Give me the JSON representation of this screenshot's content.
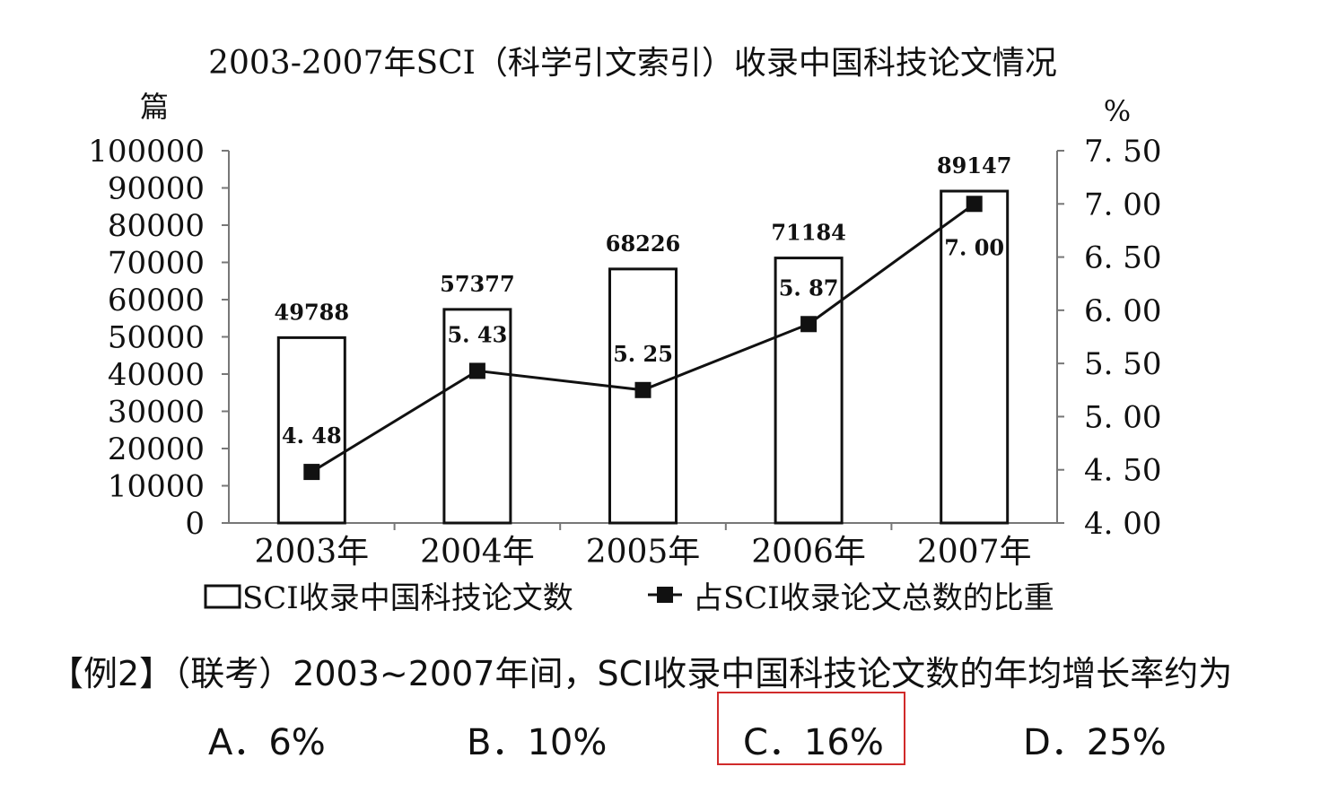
{
  "chart_data": {
    "type": "bar",
    "title": "2003-2007年SCI（科学引文索引）收录中国科技论文情况",
    "left_unit": "篇",
    "right_unit": "%",
    "categories": [
      "2003年",
      "2004年",
      "2005年",
      "2006年",
      "2007年"
    ],
    "series": [
      {
        "name": "SCI收录中国科技论文数",
        "type": "bar",
        "axis": "left",
        "values": [
          49788,
          57377,
          68226,
          71184,
          89147
        ],
        "labels": [
          "49788",
          "57377",
          "68226",
          "71184",
          "89147"
        ]
      },
      {
        "name": "占SCI收录论文总数的比重",
        "type": "line",
        "axis": "right",
        "values": [
          4.48,
          5.43,
          5.25,
          5.87,
          7.0
        ],
        "labels": [
          "4. 48",
          "5. 43",
          "5. 25",
          "5. 87",
          "7. 00"
        ]
      }
    ],
    "y_left": {
      "min": 0,
      "max": 100000,
      "ticks": [
        "0",
        "10000",
        "20000",
        "30000",
        "40000",
        "50000",
        "60000",
        "70000",
        "80000",
        "90000",
        "100000"
      ]
    },
    "y_right": {
      "min": 4.0,
      "max": 7.5,
      "ticks": [
        "4. 00",
        "4. 50",
        "5. 00",
        "5. 50",
        "6. 00",
        "6. 50",
        "7. 00",
        "7. 50"
      ]
    },
    "legend_position": "bottom",
    "grid": false
  },
  "question": {
    "prefix": "【例2】",
    "text": "（联考）2003~2007年间，SCI收录中国科技论文数的年均增长率约为"
  },
  "options": [
    {
      "label": "A．6%"
    },
    {
      "label": "B．10%"
    },
    {
      "label": "C．16%"
    },
    {
      "label": "D．25%"
    }
  ],
  "highlight_color": "#d02a2a"
}
